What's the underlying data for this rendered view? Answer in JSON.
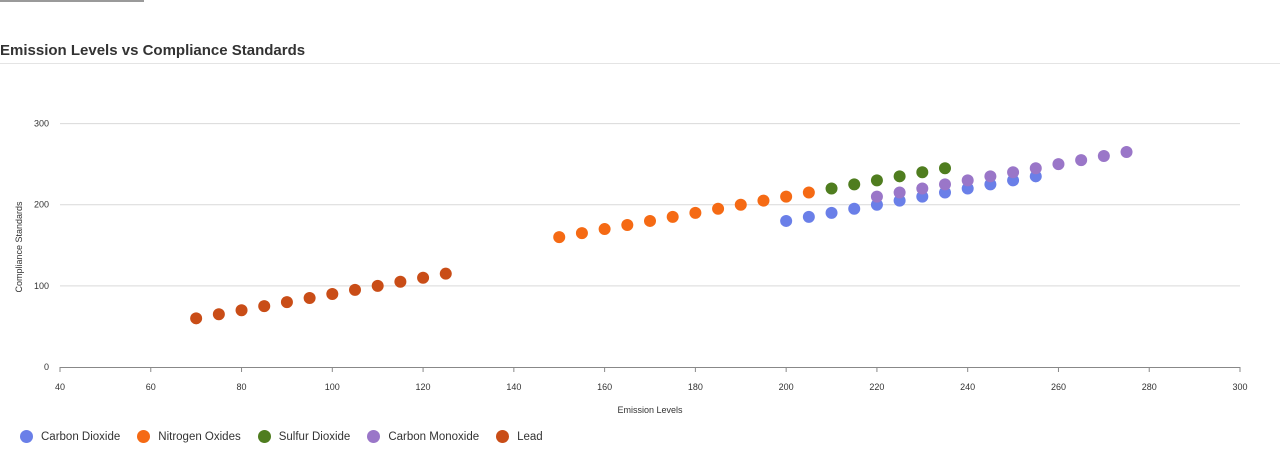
{
  "chart_data": {
    "type": "scatter",
    "title": "Emission Levels vs Compliance Standards",
    "xlabel": "Emission Levels",
    "ylabel": "Compliance Standards",
    "xlim": [
      40,
      300
    ],
    "ylim": [
      0,
      350
    ],
    "xticks": [
      40,
      60,
      80,
      100,
      120,
      140,
      160,
      180,
      200,
      220,
      240,
      260,
      280,
      300
    ],
    "yticks": [
      0,
      100,
      200,
      300
    ],
    "grid": "horizontal",
    "legend_position": "bottom-left",
    "series": [
      {
        "name": "Carbon Dioxide",
        "color": "#6a7fe8",
        "points": [
          [
            200,
            180
          ],
          [
            205,
            185
          ],
          [
            210,
            190
          ],
          [
            215,
            195
          ],
          [
            220,
            200
          ],
          [
            225,
            205
          ],
          [
            230,
            210
          ],
          [
            235,
            215
          ],
          [
            240,
            220
          ],
          [
            245,
            225
          ],
          [
            250,
            230
          ],
          [
            255,
            235
          ]
        ]
      },
      {
        "name": "Nitrogen Oxides",
        "color": "#f56a14",
        "points": [
          [
            150,
            160
          ],
          [
            155,
            165
          ],
          [
            160,
            170
          ],
          [
            165,
            175
          ],
          [
            170,
            180
          ],
          [
            175,
            185
          ],
          [
            180,
            190
          ],
          [
            185,
            195
          ],
          [
            190,
            200
          ],
          [
            195,
            205
          ],
          [
            200,
            210
          ],
          [
            205,
            215
          ]
        ]
      },
      {
        "name": "Sulfur Dioxide",
        "color": "#4f7d1f",
        "points": [
          [
            210,
            220
          ],
          [
            215,
            225
          ],
          [
            220,
            230
          ],
          [
            225,
            235
          ],
          [
            230,
            240
          ],
          [
            235,
            245
          ]
        ]
      },
      {
        "name": "Carbon Monoxide",
        "color": "#9a76c8",
        "points": [
          [
            220,
            210
          ],
          [
            225,
            215
          ],
          [
            230,
            220
          ],
          [
            235,
            225
          ],
          [
            240,
            230
          ],
          [
            245,
            235
          ],
          [
            250,
            240
          ],
          [
            255,
            245
          ],
          [
            260,
            250
          ],
          [
            265,
            255
          ],
          [
            270,
            260
          ],
          [
            275,
            265
          ]
        ]
      },
      {
        "name": "Lead",
        "color": "#c94d17",
        "points": [
          [
            70,
            60
          ],
          [
            75,
            65
          ],
          [
            80,
            70
          ],
          [
            85,
            75
          ],
          [
            90,
            80
          ],
          [
            95,
            85
          ],
          [
            100,
            90
          ],
          [
            105,
            95
          ],
          [
            110,
            100
          ],
          [
            115,
            105
          ],
          [
            120,
            110
          ],
          [
            125,
            115
          ]
        ]
      }
    ]
  }
}
